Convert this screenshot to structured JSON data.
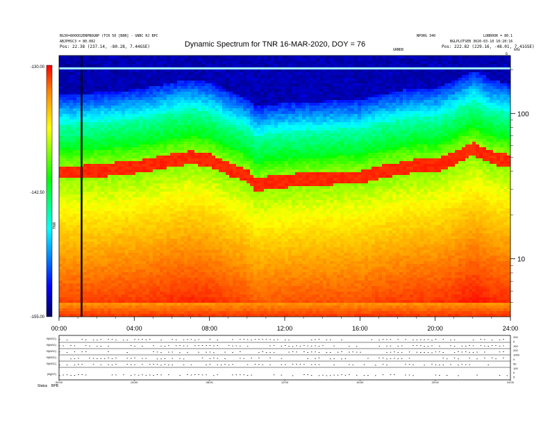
{
  "title": "Dynamic Spectrum for TNR 16-MAR-2020, DOY = 76",
  "header": {
    "left_line1": "BG3O=800OO2ENPNOGNP (TCR 50 [B8N] - GNBC RJ BPC",
    "left_line2": "ABJPHSC3 = 80.082",
    "left_line3": "Pos: 22.38 (237.14, -80.28, 7.44GSE)",
    "mid_label": "GRND8",
    "right_line1": "NPORG 340",
    "right_line2": "LOBR0OR = 80.1",
    "right_line3": "BGLPLOTSEB 3020-03-10 10:20:16",
    "right_line4": "Pos: 222.82 (229.16, -48.01, 7.41GSE)",
    "right_corner": "kHz",
    "right_corner2": "G"
  },
  "colorbar": {
    "top_label": "-130.00",
    "mid_label": "-142.50",
    "bottom_label": "-155.00",
    "side_label": "TNR",
    "min": -155,
    "max": -130
  },
  "chart_data": {
    "type": "heatmap",
    "title": "Dynamic Spectrum for TNR 16-MAR-2020, DOY = 76",
    "x_ticks": [
      "00:00",
      "04:00",
      "08:00",
      "12:00",
      "16:00",
      "20:00",
      "24:00"
    ],
    "x_range_hours": [
      0,
      24
    ],
    "y_ticks": [
      "100",
      "10"
    ],
    "y_scale": "log",
    "y_range_khz": [
      4,
      250
    ],
    "colorbar_range": [
      -155,
      -130
    ],
    "colorscale": [
      "#000060",
      "#0000ff",
      "#00ffff",
      "#00ff00",
      "#ffff00",
      "#ff8000",
      "#ff0000"
    ],
    "emission_band_khz": {
      "hours": [
        0,
        1,
        2,
        3,
        4,
        5,
        6,
        7,
        8,
        9,
        10,
        10.5,
        11,
        12,
        13,
        14,
        15,
        16,
        17,
        18,
        19,
        20,
        21,
        22,
        23,
        24
      ],
      "khz": [
        38,
        38,
        39,
        40,
        41,
        43,
        46,
        48,
        46,
        40,
        36,
        31,
        32,
        33,
        34,
        34,
        35,
        35,
        38,
        40,
        42,
        42,
        47,
        55,
        48,
        45
      ]
    },
    "data_gap_hour": 1.2
  },
  "bottom_panel": {
    "row_labels": [
      "B(NSC)",
      "B(NSC)",
      "B(NSC)",
      "B(NSC)",
      "B(NSC)",
      "|B|(NT)"
    ],
    "right_labels": [
      "200",
      "0",
      "100",
      "200",
      "1000",
      "0",
      "50",
      "100",
      "0",
      "5"
    ],
    "x_ticks": [
      "00:00",
      "04:00",
      "08:00",
      "12:00",
      "16:00",
      "20:00",
      "24:00"
    ],
    "footer_left": "Status",
    "footer_left2": "BPB"
  }
}
